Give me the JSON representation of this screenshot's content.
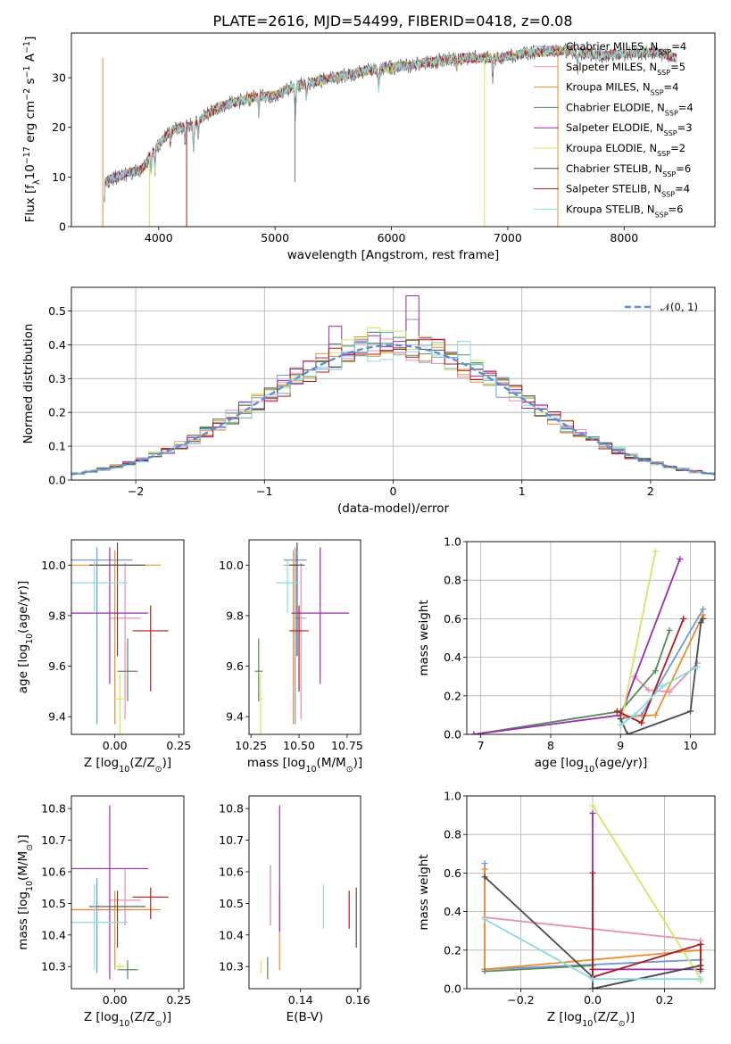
{
  "figure": {
    "title": "PLATE=2616, MJD=54499, FIBERID=0418, z=0.08",
    "colors": [
      "#6f9bd6",
      "#e88fb8",
      "#f08c2e",
      "#5a8a5a",
      "#9a2fb0",
      "#cfe863",
      "#4d4d4d",
      "#b01a1a",
      "#8adbe0"
    ]
  },
  "chart_data": [
    {
      "id": "spectrum",
      "type": "line",
      "title": "PLATE=2616, MJD=54499, FIBERID=0418, z=0.08",
      "xlabel": "wavelength [Angstrom, rest frame]",
      "ylabel": "Flux [f$_\\lambda$10$^{-17}$ erg cm$^{-2}$ s$^{-1}$ A$^{-1}$]",
      "ylabel_parts": {
        "pre": "Flux [f",
        "sub1": "λ",
        "mid": "10",
        "sup1": "−17",
        "mid2": " erg cm",
        "sup2": "−2",
        "mid3": " s",
        "sup3": "−1",
        "mid4": " A",
        "sup4": "−1",
        "post": "]"
      },
      "xlim": [
        3250,
        8780
      ],
      "ylim": [
        0,
        39
      ],
      "xticks": [
        4000,
        5000,
        6000,
        7000,
        8000
      ],
      "yticks": [
        0,
        10,
        20,
        30
      ],
      "continuum": [
        [
          3530,
          9
        ],
        [
          3700,
          10.5
        ],
        [
          3850,
          11.5
        ],
        [
          3980,
          16
        ],
        [
          4100,
          19.5
        ],
        [
          4300,
          20.5
        ],
        [
          4500,
          24
        ],
        [
          4800,
          26
        ],
        [
          5000,
          26.5
        ],
        [
          5200,
          28.5
        ],
        [
          5500,
          30
        ],
        [
          5800,
          31.5
        ],
        [
          6000,
          32
        ],
        [
          6300,
          33
        ],
        [
          6600,
          34
        ],
        [
          6900,
          34
        ],
        [
          7200,
          35
        ],
        [
          7500,
          35.5
        ],
        [
          7800,
          34.5
        ],
        [
          8100,
          35
        ],
        [
          8300,
          35
        ],
        [
          8450,
          34
        ]
      ],
      "absorption_lines": [
        [
          3934,
          4
        ],
        [
          3969,
          4
        ],
        [
          4102,
          3
        ],
        [
          4227,
          3
        ],
        [
          4300,
          5
        ],
        [
          4340,
          3
        ],
        [
          4861,
          3
        ],
        [
          5175,
          6
        ],
        [
          5270,
          3
        ],
        [
          5890,
          4
        ],
        [
          6563,
          2
        ],
        [
          6870,
          4
        ],
        [
          7600,
          3
        ]
      ],
      "spikes": [
        [
          5170,
          9
        ],
        [
          3520,
          0
        ],
        [
          3920,
          0
        ],
        [
          6800,
          0
        ],
        [
          7430,
          0
        ],
        [
          4240,
          0
        ]
      ],
      "legend": [
        {
          "pre": "Chabrier MILES, N",
          "sub": "SSP",
          "post": "=4"
        },
        {
          "pre": "Salpeter MILES, N",
          "sub": "SSP",
          "post": "=5"
        },
        {
          "pre": "Kroupa MILES, N",
          "sub": "SSP",
          "post": "=4"
        },
        {
          "pre": "Chabrier ELODIE, N",
          "sub": "SSP",
          "post": "=4"
        },
        {
          "pre": "Salpeter ELODIE, N",
          "sub": "SSP",
          "post": "=3"
        },
        {
          "pre": "Kroupa ELODIE, N",
          "sub": "SSP",
          "post": "=2"
        },
        {
          "pre": "Chabrier STELIB, N",
          "sub": "SSP",
          "post": "=6"
        },
        {
          "pre": "Salpeter STELIB, N",
          "sub": "SSP",
          "post": "=4"
        },
        {
          "pre": "Kroupa STELIB, N",
          "sub": "SSP",
          "post": "=6"
        }
      ]
    },
    {
      "id": "residuals",
      "type": "histogram",
      "xlabel": "(data-model)/error",
      "ylabel": "Normed distribution",
      "xlim": [
        -2.5,
        2.5
      ],
      "ylim": [
        0,
        0.57
      ],
      "xticks": [
        -2,
        -1,
        0,
        1,
        2
      ],
      "yticks": [
        0.0,
        0.1,
        0.2,
        0.3,
        0.4,
        0.5
      ],
      "grid": true,
      "bin_width": 0.1,
      "gaussian_label": "𝒩(0, 1)",
      "spike_bins": [
        [
          0.1,
          4,
          0.545
        ],
        [
          -0.5,
          4,
          0.455
        ],
        [
          0.1,
          0,
          0.475
        ],
        [
          0.5,
          8,
          0.41
        ],
        [
          -0.2,
          5,
          0.45
        ]
      ]
    },
    {
      "id": "z_age",
      "type": "errorbar",
      "xlabel": "Z [log$_{10}$(Z/Z$_\\odot$)]",
      "ylabel": "age [log$_{10}$(age/yr)]",
      "xlim": [
        -0.17,
        0.27
      ],
      "ylim": [
        9.33,
        10.1
      ],
      "xticks": [
        0.0,
        0.25
      ],
      "yticks": [
        9.4,
        9.6,
        9.8,
        10.0
      ],
      "points": [
        {
          "x": -0.07,
          "xerr": 0.14,
          "y": 10.02,
          "yerr": [
            0.65,
            0.05
          ]
        },
        {
          "x": 0.04,
          "xerr": 0.06,
          "y": 9.79,
          "yerr": [
            0.4,
            0.22
          ]
        },
        {
          "x": 0.0,
          "xerr": 0.18,
          "y": 10.0,
          "yerr": [
            0.63,
            0.06
          ]
        },
        {
          "x": 0.05,
          "xerr": 0.04,
          "y": 9.58,
          "yerr": [
            0.12,
            0.13
          ]
        },
        {
          "x": -0.02,
          "xerr": 0.15,
          "y": 9.81,
          "yerr": [
            0.28,
            0.26
          ]
        },
        {
          "x": 0.02,
          "xerr": 0.02,
          "y": 9.47,
          "yerr": [
            0.15,
            0.1
          ]
        },
        {
          "x": 0.01,
          "xerr": 0.11,
          "y": 10.0,
          "yerr": [
            0.36,
            0.09
          ]
        },
        {
          "x": 0.14,
          "xerr": 0.07,
          "y": 9.74,
          "yerr": [
            0.24,
            0.1
          ]
        },
        {
          "x": -0.08,
          "xerr": 0.13,
          "y": 9.93,
          "yerr": [
            0.12,
            0.09
          ]
        }
      ]
    },
    {
      "id": "mass_age",
      "type": "errorbar",
      "xlabel": "mass [log$_{10}$(M/M$_\\odot$)]",
      "ylabel": "",
      "xlim": [
        10.24,
        10.82
      ],
      "ylim": [
        9.33,
        10.1
      ],
      "xticks": [
        10.25,
        10.5,
        10.75
      ],
      "yticks": [
        9.4,
        9.6,
        9.8,
        10.0
      ],
      "points": [
        {
          "x": 10.48,
          "xerr": 0.06,
          "y": 10.02,
          "yerr": [
            0.65,
            0.05
          ]
        },
        {
          "x": 10.51,
          "xerr": 0.03,
          "y": 9.79,
          "yerr": [
            0.4,
            0.22
          ]
        },
        {
          "x": 10.47,
          "xerr": 0.05,
          "y": 10.0,
          "yerr": [
            0.63,
            0.06
          ]
        },
        {
          "x": 10.29,
          "xerr": 0.02,
          "y": 9.58,
          "yerr": [
            0.12,
            0.13
          ]
        },
        {
          "x": 10.61,
          "xerr": 0.15,
          "y": 9.81,
          "yerr": [
            0.28,
            0.26
          ]
        },
        {
          "x": 10.3,
          "xerr": 0.01,
          "y": 9.47,
          "yerr": [
            0.15,
            0.1
          ]
        },
        {
          "x": 10.49,
          "xerr": 0.04,
          "y": 10.0,
          "yerr": [
            0.36,
            0.09
          ]
        },
        {
          "x": 10.5,
          "xerr": 0.05,
          "y": 9.74,
          "yerr": [
            0.24,
            0.1
          ]
        },
        {
          "x": 10.44,
          "xerr": 0.06,
          "y": 9.93,
          "yerr": [
            0.12,
            0.09
          ]
        }
      ]
    },
    {
      "id": "weights_age",
      "type": "line",
      "xlabel": "age [log$_{10}$(age/yr)]",
      "ylabel": "mass weight",
      "xlim": [
        6.8,
        10.35
      ],
      "ylim": [
        0,
        1.0
      ],
      "xticks": [
        7,
        8,
        9,
        10
      ],
      "yticks": [
        0.0,
        0.2,
        0.4,
        0.6,
        0.8,
        1.0
      ],
      "grid": true,
      "series": [
        {
          "x": [
            9.0,
            9.3,
            10.18
          ],
          "y": [
            0.08,
            0.1,
            0.65
          ]
        },
        {
          "x": [
            9.0,
            9.2,
            9.4,
            9.7,
            10.1
          ],
          "y": [
            0.08,
            0.3,
            0.23,
            0.22,
            0.37
          ]
        },
        {
          "x": [
            9.0,
            9.5,
            10.18
          ],
          "y": [
            0.09,
            0.1,
            0.62
          ]
        },
        {
          "x": [
            6.9,
            9.0,
            9.5,
            9.7
          ],
          "y": [
            0.0,
            0.12,
            0.33,
            0.54
          ]
        },
        {
          "x": [
            6.9,
            9.0,
            9.85
          ],
          "y": [
            0.0,
            0.1,
            0.91
          ]
        },
        {
          "x": [
            9.0,
            9.5
          ],
          "y": [
            0.05,
            0.95
          ]
        },
        {
          "x": [
            9.0,
            9.1,
            10.0,
            10.15,
            10.18
          ],
          "y": [
            0.08,
            0.0,
            0.12,
            0.58,
            0.6
          ]
        },
        {
          "x": [
            8.95,
            9.3,
            9.9
          ],
          "y": [
            0.12,
            0.06,
            0.6
          ]
        },
        {
          "x": [
            9.0,
            9.2,
            9.6,
            10.1
          ],
          "y": [
            0.05,
            0.1,
            0.25,
            0.35
          ]
        }
      ]
    },
    {
      "id": "z_mass",
      "type": "errorbar",
      "xlabel": "Z [log$_{10}$(Z/Z$_\\odot$)]",
      "ylabel": "mass [log$_{10}$(M/M$_\\odot$)]",
      "xlim": [
        -0.17,
        0.27
      ],
      "ylim": [
        10.23,
        10.84
      ],
      "xticks": [
        0.0,
        0.25
      ],
      "yticks": [
        10.3,
        10.4,
        10.5,
        10.6,
        10.7,
        10.8
      ],
      "points": [
        {
          "x": -0.07,
          "xerr": 0.14,
          "y": 10.48,
          "yerr": [
            0.2,
            0.1
          ]
        },
        {
          "x": 0.04,
          "xerr": 0.06,
          "y": 10.51,
          "yerr": [
            0.08,
            0.1
          ]
        },
        {
          "x": 0.0,
          "xerr": 0.18,
          "y": 10.48,
          "yerr": [
            0.19,
            0.06
          ]
        },
        {
          "x": 0.05,
          "xerr": 0.04,
          "y": 10.29,
          "yerr": [
            0.03,
            0.03
          ]
        },
        {
          "x": -0.02,
          "xerr": 0.15,
          "y": 10.61,
          "yerr": [
            0.35,
            0.2
          ]
        },
        {
          "x": 0.02,
          "xerr": 0.02,
          "y": 10.3,
          "yerr": [
            0.01,
            0.01
          ]
        },
        {
          "x": 0.01,
          "xerr": 0.11,
          "y": 10.49,
          "yerr": [
            0.13,
            0.05
          ]
        },
        {
          "x": 0.14,
          "xerr": 0.07,
          "y": 10.52,
          "yerr": [
            0.07,
            0.03
          ]
        },
        {
          "x": -0.08,
          "xerr": 0.13,
          "y": 10.44,
          "yerr": [
            0.15,
            0.12
          ]
        }
      ]
    },
    {
      "id": "ebv_mass",
      "type": "errorbar",
      "xlabel": "E(B-V)",
      "ylabel": "",
      "xlim": [
        0.122,
        0.161
      ],
      "ylim": [
        10.23,
        10.84
      ],
      "xticks": [
        0.14,
        0.16
      ],
      "yticks": [
        10.3,
        10.4,
        10.5,
        10.6,
        10.7,
        10.8
      ],
      "points": [
        {
          "x": 0.1295,
          "xerr": 0,
          "y": 10.48,
          "yerr": [
            0.05,
            0.14
          ]
        },
        {
          "x": 0.1295,
          "xerr": 0,
          "y": 10.51,
          "yerr": [
            0.08,
            0.1
          ]
        },
        {
          "x": 0.1327,
          "xerr": 0,
          "y": 10.48,
          "yerr": [
            0.19,
            0.06
          ]
        },
        {
          "x": 0.1285,
          "xerr": 0,
          "y": 10.29,
          "yerr": [
            0.03,
            0.04
          ]
        },
        {
          "x": 0.1327,
          "xerr": 0,
          "y": 10.61,
          "yerr": [
            0.2,
            0.2
          ]
        },
        {
          "x": 0.1262,
          "xerr": 0,
          "y": 10.3,
          "yerr": [
            0.02,
            0.02
          ]
        },
        {
          "x": 0.1595,
          "xerr": 0,
          "y": 10.46,
          "yerr": [
            0.1,
            0.09
          ]
        },
        {
          "x": 0.157,
          "xerr": 0,
          "y": 10.48,
          "yerr": [
            0.06,
            0.06
          ]
        },
        {
          "x": 0.148,
          "xerr": 0,
          "y": 10.47,
          "yerr": [
            0.05,
            0.09
          ]
        }
      ]
    },
    {
      "id": "weights_z",
      "type": "line",
      "xlabel": "Z [log$_{10}$(Z/Z$_\\odot$)]",
      "ylabel": "mass weight",
      "xlim": [
        -0.35,
        0.34
      ],
      "ylim": [
        0,
        1.0
      ],
      "xticks": [
        -0.2,
        0.0,
        0.2
      ],
      "yticks": [
        0.0,
        0.2,
        0.4,
        0.6,
        0.8,
        1.0
      ],
      "grid": true,
      "series": [
        {
          "x": [
            -0.3,
            -0.3,
            0.3,
            0.3
          ],
          "y": [
            0.65,
            0.1,
            0.15,
            0.09
          ]
        },
        {
          "x": [
            -0.3,
            0.3
          ],
          "y": [
            0.37,
            0.25
          ]
        },
        {
          "x": [
            -0.3,
            -0.3,
            0.3,
            0.3
          ],
          "y": [
            0.62,
            0.1,
            0.2,
            0.1
          ]
        },
        {
          "x": [
            -0.3,
            0.0,
            0.0,
            0.3,
            0.3
          ],
          "y": [
            0.09,
            0.12,
            0.0,
            0.12,
            0.1
          ]
        },
        {
          "x": [
            0.0,
            0.0,
            0.3
          ],
          "y": [
            0.91,
            0.1,
            0.1
          ]
        },
        {
          "x": [
            0.0,
            0.3,
            0.3
          ],
          "y": [
            0.95,
            0.05,
            0.04
          ]
        },
        {
          "x": [
            -0.3,
            0.0,
            0.0,
            0.3,
            0.3
          ],
          "y": [
            0.58,
            0.06,
            0.0,
            0.12,
            0.1
          ]
        },
        {
          "x": [
            0.0,
            0.0,
            0.0,
            0.3,
            0.3
          ],
          "y": [
            0.6,
            0.1,
            0.06,
            0.23,
            0.1
          ]
        },
        {
          "x": [
            -0.3,
            0.0,
            0.3
          ],
          "y": [
            0.36,
            0.05,
            0.05
          ]
        }
      ]
    }
  ]
}
